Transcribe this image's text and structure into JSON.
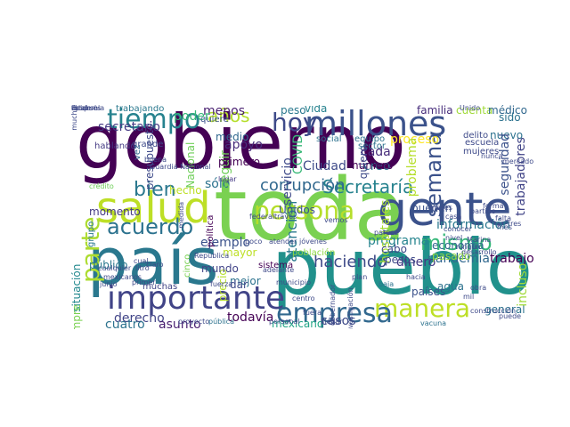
{
  "words": [
    {
      "text": "gobierno",
      "color": "#440154"
    },
    {
      "text": "toda",
      "color": "#7ad151"
    },
    {
      "text": "pueblo",
      "color": "#21918c"
    },
    {
      "text": "país",
      "color": "#2a788e"
    },
    {
      "text": "salud",
      "color": "#bddf26"
    },
    {
      "text": "gente",
      "color": "#3b528b"
    },
    {
      "text": "millones",
      "color": "#3b528b"
    },
    {
      "text": "importante",
      "color": "#414487"
    },
    {
      "text": "persona",
      "color": "#b5de2b"
    },
    {
      "text": "manera",
      "color": "#bddf26"
    },
    {
      "text": "empresa",
      "color": "#31688e"
    },
    {
      "text": "tiempo",
      "color": "#26828e"
    },
    {
      "text": "acuerdo",
      "color": "#2c728e"
    },
    {
      "text": "hoy",
      "color": "#3e4a89"
    },
    {
      "text": "parte",
      "color": "#addc30"
    },
    {
      "text": "Secretaría",
      "color": "#26828e"
    },
    {
      "text": "mismo",
      "color": "#35b779"
    },
    {
      "text": "semana",
      "color": "#3b528b"
    },
    {
      "text": "bien",
      "color": "#2a788e"
    },
    {
      "text": "haciendo",
      "color": "#3e4a89"
    },
    {
      "text": "corrupción",
      "color": "#31688e"
    },
    {
      "text": "años",
      "color": "#b5de2b"
    },
    {
      "text": "apoyo",
      "color": "#472d7b"
    },
    {
      "text": "proceso",
      "color": "#fde725"
    },
    {
      "text": "derecho",
      "color": "#414487"
    },
    {
      "text": "sólo",
      "color": "#2c728e"
    },
    {
      "text": "seguir",
      "color": "#6ece58"
    },
    {
      "text": "cada",
      "color": "#472d7b"
    },
    {
      "text": "creo",
      "color": "#2c728e"
    },
    {
      "text": "programa",
      "color": "#25848e"
    },
    {
      "text": "información",
      "color": "#2a788e"
    },
    {
      "text": "pandemia",
      "color": "#31688e"
    },
    {
      "text": "trabajo",
      "color": "#440154"
    },
    {
      "text": "general",
      "color": "#2c728e"
    },
    {
      "text": "incluso",
      "color": "#a0da39"
    },
    {
      "text": "mexicano",
      "color": "#20a486"
    },
    {
      "text": "todavía",
      "color": "#440154"
    },
    {
      "text": "ejemplo",
      "color": "#3b528b"
    },
    {
      "text": "dinero",
      "color": "#443983"
    },
    {
      "text": "casos",
      "color": "#3e4a89"
    },
    {
      "text": "asunto",
      "color": "#481f70"
    },
    {
      "text": "cuatro",
      "color": "#2c728e"
    },
    {
      "text": "cosa",
      "color": "#2c728e"
    },
    {
      "text": "secretario",
      "color": "#443983"
    },
    {
      "text": "menos",
      "color": "#481f70"
    },
    {
      "text": "poder",
      "color": "#35b779"
    },
    {
      "text": "peso",
      "color": "#2a788e"
    },
    {
      "text": "vida",
      "color": "#26828e"
    },
    {
      "text": "familia",
      "color": "#472d7b"
    },
    {
      "text": "cuenta",
      "color": "#a0da39"
    },
    {
      "text": "médico",
      "color": "#31688e"
    },
    {
      "text": "sido",
      "color": "#2c728e"
    },
    {
      "text": "nuevo",
      "color": "#2c728e"
    },
    {
      "text": "Ciudad",
      "color": "#3e4a89"
    },
    {
      "text": "COVID",
      "color": "#38b977"
    },
    {
      "text": "servicio",
      "color": "#3e4a89"
    },
    {
      "text": "atención",
      "color": "#2a788e"
    },
    {
      "text": "problema",
      "color": "#b5de2b"
    },
    {
      "text": "seguridad",
      "color": "#3b528b"
    },
    {
      "text": "trabajadores",
      "color": "#414487"
    },
    {
      "text": "hospitales",
      "color": "#a8db34"
    },
    {
      "text": "situación",
      "color": "#23898e"
    },
    {
      "text": "momento",
      "color": "#443983"
    },
    {
      "text": "público",
      "color": "#2a788e"
    },
    {
      "text": "siempre",
      "color": "#7ad151"
    },
    {
      "text": "primero",
      "color": "#440154"
    },
    {
      "text": "hecho",
      "color": "#bddf26"
    },
    {
      "text": "Nacional",
      "color": "#6ece58"
    },
    {
      "text": "presupuesto",
      "color": "#3e4a89"
    },
    {
      "text": "medio",
      "color": "#31688e"
    },
    {
      "text": "mayor",
      "color": "#bddf26"
    },
    {
      "text": "precio",
      "color": "#b5de2b"
    },
    {
      "text": "mejor",
      "color": "#2c728e"
    },
    {
      "text": "dar",
      "color": "#3e4a89"
    },
    {
      "text": "mundo",
      "color": "#414487"
    },
    {
      "text": "cabo",
      "color": "#3e4a89"
    },
    {
      "text": "pesos",
      "color": "#3e4a89"
    },
    {
      "text": "Unidos",
      "color": "#3b528b"
    },
    {
      "text": "número",
      "color": "#440154"
    },
    {
      "text": "quiero",
      "color": "#3e4a89"
    },
    {
      "text": "pueden",
      "color": "#3b528b"
    },
    {
      "text": "economía",
      "color": "#31688e"
    },
    {
      "text": "pasado",
      "color": "#8fd744"
    },
    {
      "text": "agua",
      "color": "#2c728e"
    },
    {
      "text": "países",
      "color": "#3b528b"
    },
    {
      "text": "grupo",
      "color": "#2a788e"
    },
    {
      "text": "muchas",
      "color": "#414487"
    },
    {
      "text": "política",
      "color": "#440154"
    },
    {
      "text": "cinco",
      "color": "#7ad151"
    },
    {
      "text": "población",
      "color": "#8fd744"
    },
    {
      "text": "sistema",
      "color": "#440154"
    },
    {
      "text": "trabajando",
      "color": "#2a788e"
    },
    {
      "text": "quiere",
      "color": "#3b528b"
    },
    {
      "text": "social",
      "color": "#2c728e"
    },
    {
      "text": "equipo",
      "color": "#2c728e"
    },
    {
      "text": "sector",
      "color": "#2c728e"
    },
    {
      "text": "delito",
      "color": "#3e4a89"
    },
    {
      "text": "escuela",
      "color": "#3e4a89"
    },
    {
      "text": "mujeres",
      "color": "#3e4a89"
    },
    {
      "text": "hablando",
      "color": "#443983"
    },
    {
      "text": "grande",
      "color": "#3e4a89"
    },
    {
      "text": "vez",
      "color": "#31688e"
    },
    {
      "text": "lugar",
      "color": "#443983"
    },
    {
      "text": "crédito",
      "color": "#6ece58"
    },
    {
      "text": "adelante",
      "color": "#3e4a89"
    },
    {
      "text": "personal",
      "color": "#3e4a89"
    },
    {
      "text": "llegar",
      "color": "#3e4a89"
    },
    {
      "text": "vacuna",
      "color": "#2c728e"
    },
    {
      "text": "construcción",
      "color": "#3e4a89"
    },
    {
      "text": "obra",
      "color": "#3e4a89"
    },
    {
      "text": "hacia",
      "color": "#3e4a89"
    },
    {
      "text": "primer",
      "color": "#3e4a89"
    },
    {
      "text": "proyecto",
      "color": "#3e4a89"
    },
    {
      "text": "pública",
      "color": "#2c728e"
    },
    {
      "text": "baja",
      "color": "#2c728e"
    },
    {
      "text": "plan",
      "color": "#3e4a89"
    },
    {
      "text": "gobernador",
      "color": "#3e4a89"
    },
    {
      "text": "investigación",
      "color": "#3e4a89"
    },
    {
      "text": "desarrollo",
      "color": "#3e4a89"
    },
    {
      "text": "Unido",
      "color": "#3e4a89"
    },
    {
      "text": "poco",
      "color": "#3e4a89"
    },
    {
      "text": "nunca",
      "color": "#3e4a89"
    },
    {
      "text": "forma",
      "color": "#3e4a89"
    },
    {
      "text": "mercado",
      "color": "#3e4a89"
    },
    {
      "text": "cualquier",
      "color": "#3e4a89"
    },
    {
      "text": "mexicanos",
      "color": "#3e4a89"
    },
    {
      "text": "junio",
      "color": "#3e4a89"
    },
    {
      "text": "nivel",
      "color": "#3e4a89"
    },
    {
      "text": "cual",
      "color": "#3e4a89"
    },
    {
      "text": "litro",
      "color": "#3e4a89"
    },
    {
      "text": "claro",
      "color": "#3e4a89"
    },
    {
      "text": "fuerza",
      "color": "#3e4a89"
    },
    {
      "text": "parece",
      "color": "#3e4a89"
    },
    {
      "text": "partido",
      "color": "#3e4a89"
    },
    {
      "text": "casa",
      "color": "#3e4a89"
    },
    {
      "text": "tres",
      "color": "#3e4a89"
    },
    {
      "text": "federal",
      "color": "#3e4a89"
    },
    {
      "text": "Marina",
      "color": "#3e4a89"
    },
    {
      "text": "muchos",
      "color": "#3e4a89"
    },
    {
      "text": "buena",
      "color": "#3e4a89"
    },
    {
      "text": "Guardia Nacional",
      "color": "#3e4a89"
    },
    {
      "text": "República",
      "color": "#3e4a89"
    },
    {
      "text": "medida",
      "color": "#3e4a89"
    },
    {
      "text": "través",
      "color": "#3e4a89"
    },
    {
      "text": "atender",
      "color": "#3e4a89"
    },
    {
      "text": "fuera",
      "color": "#3e4a89"
    },
    {
      "text": "centro",
      "color": "#3e4a89"
    },
    {
      "text": "falta",
      "color": "#3e4a89"
    },
    {
      "text": "mes",
      "color": "#3e4a89"
    },
    {
      "text": "meses",
      "color": "#3e4a89"
    },
    {
      "text": "conocer",
      "color": "#3e4a89"
    },
    {
      "text": "vemos",
      "color": "#3e4a89"
    },
    {
      "text": "jóvenes",
      "color": "#3e4a89"
    },
    {
      "text": "municipio",
      "color": "#3e4a89"
    },
    {
      "text": "mil",
      "color": "#3e4a89"
    },
    {
      "text": "puede",
      "color": "#3e4a89"
    },
    {
      "text": "ningún",
      "color": "#3e4a89"
    },
    {
      "text": "total",
      "color": "#3e4a89"
    },
    {
      "text": "recurso",
      "color": "#3e4a89"
    },
    {
      "text": "después",
      "color": "#3e4a89"
    },
    {
      "text": "epidemia",
      "color": "#3e4a89"
    }
  ]
}
